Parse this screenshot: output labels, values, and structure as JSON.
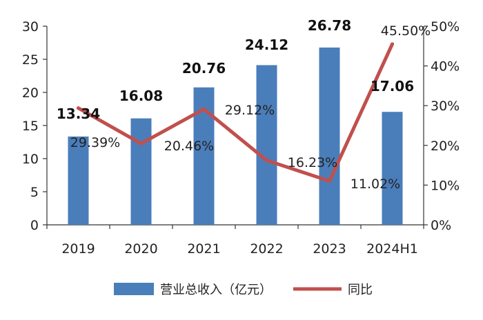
{
  "chart_data": {
    "type": "bar+line",
    "categories": [
      "2019",
      "2020",
      "2021",
      "2022",
      "2023",
      "2024H1"
    ],
    "series": [
      {
        "name": "营业总收入（亿元）",
        "type": "bar",
        "axis": "left",
        "values": [
          13.34,
          16.08,
          20.76,
          24.12,
          26.78,
          17.06
        ],
        "labels": [
          "13.34",
          "16.08",
          "20.76",
          "24.12",
          "26.78",
          "17.06"
        ],
        "color": "#4a7ebb"
      },
      {
        "name": "同比",
        "type": "line",
        "axis": "right",
        "values": [
          29.39,
          20.46,
          29.12,
          16.23,
          11.02,
          45.5
        ],
        "labels": [
          "29.39%",
          "20.46%",
          "29.12%",
          "16.23%",
          "11.02%",
          "45.50%"
        ],
        "color": "#c0504d"
      }
    ],
    "y_left": {
      "min": 0,
      "max": 30,
      "ticks": [
        "0",
        "5",
        "10",
        "15",
        "20",
        "25",
        "30"
      ]
    },
    "y_right": {
      "min": 0,
      "max": 50,
      "ticks": [
        "0%",
        "10%",
        "20%",
        "30%",
        "40%",
        "50%"
      ]
    },
    "grid": false,
    "legend_position": "bottom"
  }
}
